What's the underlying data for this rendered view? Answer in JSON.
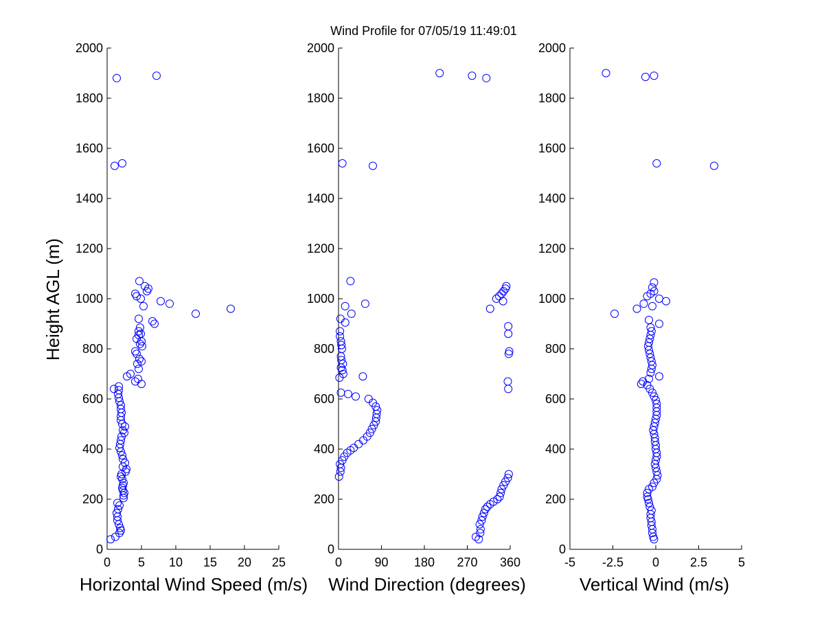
{
  "title": "Wind Profile for  07/05/19 11:49:01",
  "marker_color": "#0000ff",
  "chart_data": [
    {
      "type": "scatter",
      "xlabel": "Horizontal Wind Speed (m/s)",
      "ylabel": "Height AGL (m)",
      "xlim": [
        0,
        25
      ],
      "ylim": [
        0,
        2000
      ],
      "xticks": [
        "0",
        "5",
        "10",
        "15",
        "20",
        "25"
      ],
      "yticks": [
        "0",
        "200",
        "400",
        "600",
        "800",
        "1000",
        "1200",
        "1400",
        "1600",
        "1800",
        "2000"
      ],
      "points": [
        [
          0.5,
          40
        ],
        [
          1.2,
          50
        ],
        [
          1.8,
          65
        ],
        [
          2.0,
          75
        ],
        [
          1.9,
          85
        ],
        [
          1.7,
          100
        ],
        [
          1.5,
          115
        ],
        [
          1.5,
          130
        ],
        [
          1.4,
          145
        ],
        [
          1.6,
          160
        ],
        [
          1.8,
          175
        ],
        [
          1.5,
          185
        ],
        [
          2.4,
          205
        ],
        [
          2.4,
          215
        ],
        [
          2.5,
          225
        ],
        [
          2.3,
          235
        ],
        [
          2.2,
          245
        ],
        [
          2.3,
          255
        ],
        [
          2.4,
          265
        ],
        [
          2.2,
          280
        ],
        [
          2.0,
          290
        ],
        [
          2.1,
          300
        ],
        [
          2.7,
          310
        ],
        [
          2.8,
          320
        ],
        [
          2.3,
          330
        ],
        [
          2.6,
          345
        ],
        [
          2.3,
          360
        ],
        [
          2.2,
          375
        ],
        [
          2.0,
          390
        ],
        [
          1.8,
          405
        ],
        [
          1.9,
          420
        ],
        [
          2.0,
          435
        ],
        [
          2.1,
          450
        ],
        [
          2.5,
          465
        ],
        [
          2.3,
          475
        ],
        [
          2.6,
          490
        ],
        [
          2.2,
          500
        ],
        [
          2.0,
          515
        ],
        [
          2.0,
          530
        ],
        [
          2.1,
          545
        ],
        [
          2.0,
          560
        ],
        [
          2.0,
          575
        ],
        [
          1.8,
          590
        ],
        [
          1.7,
          605
        ],
        [
          1.6,
          620
        ],
        [
          1.7,
          635
        ],
        [
          1.0,
          640
        ],
        [
          1.7,
          650
        ],
        [
          5.0,
          660
        ],
        [
          4.1,
          670
        ],
        [
          4.5,
          680
        ],
        [
          2.9,
          690
        ],
        [
          3.4,
          700
        ],
        [
          4.6,
          720
        ],
        [
          4.4,
          740
        ],
        [
          5.0,
          750
        ],
        [
          4.7,
          760
        ],
        [
          4.3,
          780
        ],
        [
          4.1,
          790
        ],
        [
          5.1,
          810
        ],
        [
          4.8,
          820
        ],
        [
          5.0,
          830
        ],
        [
          4.3,
          840
        ],
        [
          4.6,
          855
        ],
        [
          4.9,
          860
        ],
        [
          4.6,
          870
        ],
        [
          4.8,
          885
        ],
        [
          6.9,
          900
        ],
        [
          6.6,
          910
        ],
        [
          4.6,
          920
        ],
        [
          12.9,
          940
        ],
        [
          18.0,
          960
        ],
        [
          5.3,
          970
        ],
        [
          9.1,
          980
        ],
        [
          7.8,
          990
        ],
        [
          4.9,
          1000
        ],
        [
          4.3,
          1010
        ],
        [
          4.1,
          1020
        ],
        [
          5.8,
          1030
        ],
        [
          6.0,
          1040
        ],
        [
          5.5,
          1050
        ],
        [
          4.7,
          1070
        ],
        [
          1.1,
          1530
        ],
        [
          2.2,
          1540
        ],
        [
          1.4,
          1880
        ],
        [
          7.2,
          1890
        ]
      ]
    },
    {
      "type": "scatter",
      "xlabel": "Wind Direction (degrees)",
      "ylabel": "",
      "xlim": [
        0,
        360
      ],
      "ylim": [
        0,
        2000
      ],
      "xticks": [
        "0",
        "90",
        "180",
        "270",
        "360"
      ],
      "yticks": [
        "0",
        "200",
        "400",
        "600",
        "800",
        "1000",
        "1200",
        "1400",
        "1600",
        "1800",
        "2000"
      ],
      "points": [
        [
          294,
          40
        ],
        [
          288,
          50
        ],
        [
          297,
          65
        ],
        [
          298,
          80
        ],
        [
          296,
          100
        ],
        [
          300,
          115
        ],
        [
          302,
          130
        ],
        [
          305,
          145
        ],
        [
          308,
          160
        ],
        [
          312,
          170
        ],
        [
          318,
          180
        ],
        [
          325,
          190
        ],
        [
          333,
          200
        ],
        [
          338,
          210
        ],
        [
          340,
          225
        ],
        [
          342,
          240
        ],
        [
          346,
          255
        ],
        [
          350,
          270
        ],
        [
          355,
          285
        ],
        [
          357,
          300
        ],
        [
          1,
          290
        ],
        [
          4,
          310
        ],
        [
          5,
          325
        ],
        [
          3,
          340
        ],
        [
          8,
          355
        ],
        [
          12,
          370
        ],
        [
          18,
          385
        ],
        [
          25,
          395
        ],
        [
          32,
          405
        ],
        [
          42,
          420
        ],
        [
          52,
          435
        ],
        [
          60,
          450
        ],
        [
          66,
          465
        ],
        [
          70,
          480
        ],
        [
          74,
          495
        ],
        [
          78,
          510
        ],
        [
          79,
          525
        ],
        [
          80,
          540
        ],
        [
          81,
          555
        ],
        [
          78,
          570
        ],
        [
          72,
          585
        ],
        [
          63,
          600
        ],
        [
          36,
          610
        ],
        [
          20,
          620
        ],
        [
          5,
          625
        ],
        [
          356,
          640
        ],
        [
          355,
          670
        ],
        [
          2,
          685
        ],
        [
          51,
          690
        ],
        [
          10,
          700
        ],
        [
          8,
          715
        ],
        [
          5,
          725
        ],
        [
          9,
          740
        ],
        [
          6,
          755
        ],
        [
          5,
          770
        ],
        [
          357,
          780
        ],
        [
          358,
          790
        ],
        [
          7,
          800
        ],
        [
          6,
          815
        ],
        [
          5,
          830
        ],
        [
          3,
          850
        ],
        [
          356,
          860
        ],
        [
          3,
          870
        ],
        [
          356,
          890
        ],
        [
          14,
          905
        ],
        [
          4,
          920
        ],
        [
          318,
          960
        ],
        [
          27,
          940
        ],
        [
          14,
          970
        ],
        [
          56,
          980
        ],
        [
          345,
          990
        ],
        [
          331,
          1000
        ],
        [
          337,
          1010
        ],
        [
          342,
          1020
        ],
        [
          346,
          1030
        ],
        [
          350,
          1040
        ],
        [
          352,
          1050
        ],
        [
          25,
          1070
        ],
        [
          72,
          1530
        ],
        [
          8,
          1540
        ],
        [
          212,
          1900
        ],
        [
          280,
          1890
        ],
        [
          310,
          1880
        ]
      ]
    },
    {
      "type": "scatter",
      "xlabel": "Vertical Wind (m/s)",
      "ylabel": "",
      "xlim": [
        -5,
        5
      ],
      "ylim": [
        0,
        2000
      ],
      "xticks": [
        "-5",
        "-2.5",
        "0",
        "2.5",
        "5"
      ],
      "yticks": [
        "0",
        "200",
        "400",
        "600",
        "800",
        "1000",
        "1200",
        "1400",
        "1600",
        "1800",
        "2000"
      ],
      "points": [
        [
          -0.1,
          40
        ],
        [
          -0.15,
          50
        ],
        [
          -0.2,
          65
        ],
        [
          -0.2,
          80
        ],
        [
          -0.25,
          95
        ],
        [
          -0.25,
          110
        ],
        [
          -0.3,
          125
        ],
        [
          -0.3,
          140
        ],
        [
          -0.25,
          155
        ],
        [
          -0.35,
          170
        ],
        [
          -0.4,
          185
        ],
        [
          -0.45,
          200
        ],
        [
          -0.5,
          210
        ],
        [
          -0.5,
          225
        ],
        [
          -0.4,
          240
        ],
        [
          -0.2,
          250
        ],
        [
          -0.1,
          265
        ],
        [
          0.05,
          280
        ],
        [
          0.1,
          295
        ],
        [
          0.05,
          310
        ],
        [
          0.0,
          325
        ],
        [
          -0.05,
          340
        ],
        [
          0.0,
          355
        ],
        [
          0.05,
          370
        ],
        [
          0.05,
          385
        ],
        [
          0.0,
          400
        ],
        [
          0.0,
          415
        ],
        [
          -0.05,
          430
        ],
        [
          -0.05,
          445
        ],
        [
          -0.1,
          460
        ],
        [
          -0.15,
          475
        ],
        [
          -0.1,
          490
        ],
        [
          -0.05,
          505
        ],
        [
          0.0,
          520
        ],
        [
          0.05,
          535
        ],
        [
          0.05,
          550
        ],
        [
          0.05,
          565
        ],
        [
          0.05,
          580
        ],
        [
          0.0,
          595
        ],
        [
          -0.1,
          610
        ],
        [
          -0.2,
          625
        ],
        [
          -0.35,
          640
        ],
        [
          -0.5,
          655
        ],
        [
          -0.85,
          660
        ],
        [
          -0.75,
          670
        ],
        [
          -0.4,
          680
        ],
        [
          0.2,
          690
        ],
        [
          -0.3,
          705
        ],
        [
          -0.25,
          720
        ],
        [
          -0.2,
          735
        ],
        [
          -0.25,
          750
        ],
        [
          -0.3,
          765
        ],
        [
          -0.35,
          780
        ],
        [
          -0.4,
          795
        ],
        [
          -0.45,
          810
        ],
        [
          -0.4,
          825
        ],
        [
          -0.35,
          840
        ],
        [
          -0.3,
          855
        ],
        [
          -0.25,
          870
        ],
        [
          -0.3,
          885
        ],
        [
          0.2,
          900
        ],
        [
          -0.4,
          915
        ],
        [
          -2.4,
          940
        ],
        [
          -1.1,
          960
        ],
        [
          -0.2,
          970
        ],
        [
          -0.7,
          980
        ],
        [
          0.6,
          990
        ],
        [
          0.2,
          1000
        ],
        [
          -0.5,
          1010
        ],
        [
          -0.3,
          1020
        ],
        [
          -0.1,
          1030
        ],
        [
          -0.2,
          1045
        ],
        [
          -0.1,
          1065
        ],
        [
          3.4,
          1530
        ],
        [
          0.05,
          1540
        ],
        [
          -2.9,
          1900
        ],
        [
          -0.6,
          1885
        ],
        [
          -0.1,
          1890
        ]
      ]
    }
  ]
}
